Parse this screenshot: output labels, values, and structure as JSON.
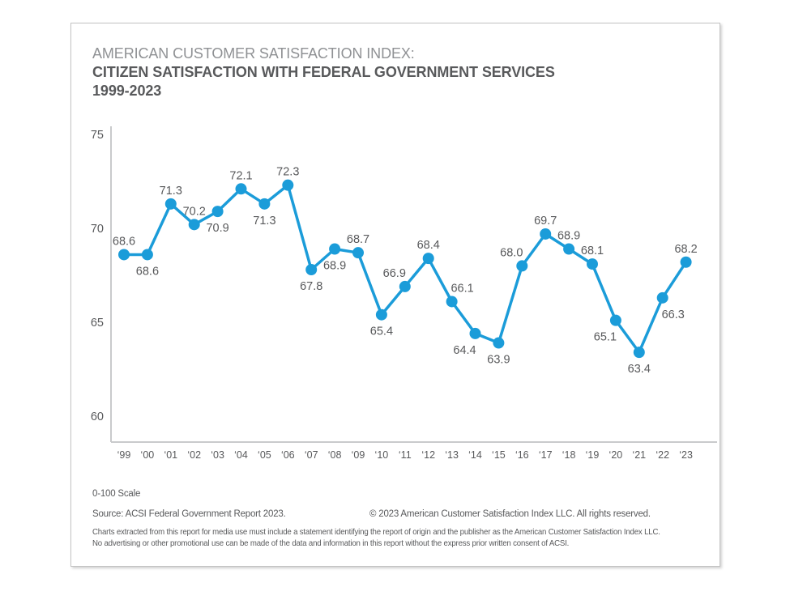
{
  "title": {
    "line1": "AMERICAN CUSTOMER SATISFACTION INDEX:",
    "line2": "CITIZEN SATISFACTION WITH FEDERAL GOVERNMENT SERVICES",
    "line3": "1999-2023"
  },
  "chart_data": {
    "type": "line",
    "title": "Citizen Satisfaction with Federal Government Services 1999-2023",
    "categories": [
      "‘99",
      "‘00",
      "‘01",
      "‘02",
      "‘03",
      "‘04",
      "‘05",
      "‘06",
      "‘07",
      "‘08",
      "‘09",
      "‘10",
      "‘11",
      "‘12",
      "‘13",
      "‘14",
      "‘15",
      "‘16",
      "‘17",
      "‘18",
      "‘19",
      "‘20",
      "‘21",
      "‘22",
      "‘23"
    ],
    "values": [
      68.6,
      68.6,
      71.3,
      70.2,
      70.9,
      72.1,
      71.3,
      72.3,
      67.8,
      68.9,
      68.7,
      65.4,
      66.9,
      68.4,
      66.1,
      64.4,
      63.9,
      68.0,
      69.7,
      68.9,
      68.1,
      65.1,
      63.4,
      66.3,
      68.2
    ],
    "label_positions": [
      "above",
      "below",
      "above",
      "above",
      "below",
      "above",
      "below",
      "above",
      "below",
      "below",
      "above",
      "below",
      "above-left",
      "above",
      "above-right",
      "below-left",
      "below",
      "above-left",
      "above",
      "above",
      "above",
      "below-left",
      "below",
      "below-right",
      "above"
    ],
    "y_ticks": [
      75,
      70,
      65,
      60
    ],
    "ylim": [
      58.6,
      75.4
    ],
    "grid": false,
    "legend": "none",
    "xlabel": "",
    "ylabel": ""
  },
  "colors": {
    "accent": "#1b9cd9",
    "text_dark": "#58595b",
    "text_light": "#8f9194",
    "axis": "#c9cacc"
  },
  "footer": {
    "scale_note": "0-100 Scale",
    "source": "Source: ACSI Federal Government Report 2023.",
    "copyright": "© 2023 American Customer Satisfaction Index LLC. All rights reserved.",
    "disclaimer_line1": "Charts extracted from this report for media use must include a statement identifying the report of origin and the publisher as the American Customer Satisfaction Index LLC.",
    "disclaimer_line2": "No advertising or other promotional use can be made of the data and information in this report without the express prior written consent of ACSI."
  }
}
